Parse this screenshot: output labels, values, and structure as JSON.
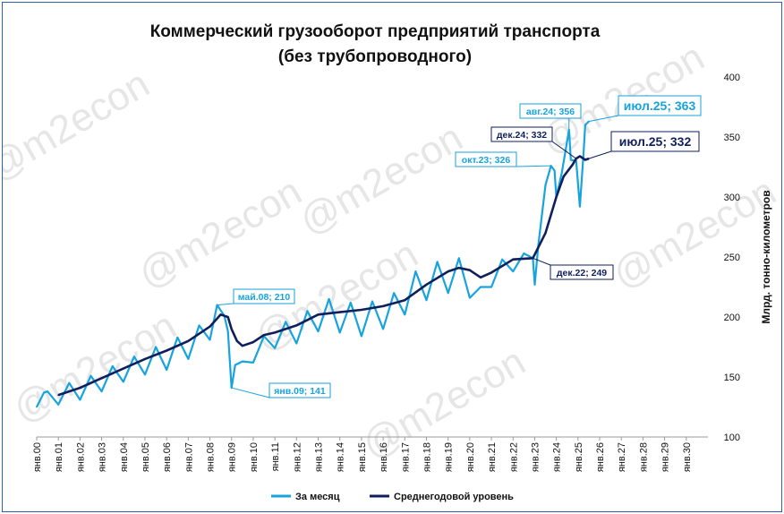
{
  "chart_data": {
    "type": "line",
    "title_lines": [
      "Коммерческий грузооборот предприятий транспорта",
      "(без трубопроводного)"
    ],
    "ylabel": "Млрд. тонно-километров",
    "ylim": [
      100,
      400
    ],
    "yticks": [
      100,
      150,
      200,
      250,
      300,
      350,
      400
    ],
    "x_start": "янв.00",
    "x_end": "янв.31",
    "xtick_labels": [
      "янв.00",
      "янв.01",
      "янв.02",
      "янв.03",
      "янв.04",
      "янв.05",
      "янв.06",
      "янв.07",
      "янв.08",
      "янв.09",
      "янв.10",
      "янв.11",
      "янв.12",
      "янв.13",
      "янв.14",
      "янв.15",
      "янв.16",
      "янв.17",
      "янв.18",
      "янв.19",
      "янв.20",
      "янв.21",
      "янв.22",
      "янв.23",
      "янв.24",
      "янв.25",
      "янв.26",
      "янв.27",
      "янв.28",
      "янв.29",
      "янв.30"
    ],
    "grid": false,
    "legend_position": "bottom",
    "watermark": "@m2econ",
    "series": [
      {
        "name": "За месяц",
        "color": "#17a3de",
        "points": [
          [
            "янв.00",
            125
          ],
          [
            "май.00",
            137
          ],
          [
            "июл.00",
            138
          ],
          [
            "янв.01",
            127
          ],
          [
            "июл.01",
            145
          ],
          [
            "янв.02",
            131
          ],
          [
            "июл.02",
            151
          ],
          [
            "янв.03",
            138
          ],
          [
            "июл.03",
            159
          ],
          [
            "янв.04",
            146
          ],
          [
            "июл.04",
            167
          ],
          [
            "янв.05",
            152
          ],
          [
            "июл.05",
            175
          ],
          [
            "янв.06",
            156
          ],
          [
            "июл.06",
            183
          ],
          [
            "янв.07",
            165
          ],
          [
            "июл.07",
            193
          ],
          [
            "янв.08",
            181
          ],
          [
            "май.08",
            210
          ],
          [
            "сен.08",
            201
          ],
          [
            "ноя.08",
            188
          ],
          [
            "янв.09",
            141
          ],
          [
            "мар.09",
            160
          ],
          [
            "июл.09",
            163
          ],
          [
            "янв.10",
            162
          ],
          [
            "июл.10",
            184
          ],
          [
            "янв.11",
            174
          ],
          [
            "июл.11",
            196
          ],
          [
            "янв.12",
            178
          ],
          [
            "июл.12",
            205
          ],
          [
            "янв.13",
            188
          ],
          [
            "июл.13",
            215
          ],
          [
            "янв.14",
            187
          ],
          [
            "июл.14",
            212
          ],
          [
            "янв.15",
            184
          ],
          [
            "июл.15",
            213
          ],
          [
            "янв.16",
            190
          ],
          [
            "июл.16",
            220
          ],
          [
            "янв.17",
            202
          ],
          [
            "июл.17",
            238
          ],
          [
            "янв.18",
            214
          ],
          [
            "июл.18",
            246
          ],
          [
            "янв.19",
            220
          ],
          [
            "июл.19",
            249
          ],
          [
            "янв.20",
            216
          ],
          [
            "июл.20",
            225
          ],
          [
            "янв.21",
            225
          ],
          [
            "июл.21",
            248
          ],
          [
            "янв.22",
            238
          ],
          [
            "июл.22",
            253
          ],
          [
            "дек.22",
            249
          ],
          [
            "янв.23",
            227
          ],
          [
            "мар.23",
            260
          ],
          [
            "июл.23",
            310
          ],
          [
            "окт.23",
            326
          ],
          [
            "дек.23",
            322
          ],
          [
            "янв.24",
            300
          ],
          [
            "апр.24",
            320
          ],
          [
            "авг.24",
            356
          ],
          [
            "сен.24",
            331
          ],
          [
            "дек.24",
            330
          ],
          [
            "фев.25",
            292
          ],
          [
            "апр.25",
            335
          ],
          [
            "май.25",
            360
          ],
          [
            "июл.25",
            363
          ]
        ]
      },
      {
        "name": "Среднегодовой уровень",
        "color": "#0f1f5c",
        "points": [
          [
            "янв.01",
            135
          ],
          [
            "янв.02",
            141
          ],
          [
            "янв.03",
            149
          ],
          [
            "янв.04",
            157
          ],
          [
            "янв.05",
            165
          ],
          [
            "янв.06",
            172
          ],
          [
            "янв.07",
            180
          ],
          [
            "янв.08",
            192
          ],
          [
            "июл.08",
            202
          ],
          [
            "ноя.08",
            200
          ],
          [
            "янв.09",
            190
          ],
          [
            "апр.09",
            180
          ],
          [
            "июл.09",
            176
          ],
          [
            "янв.10",
            179
          ],
          [
            "июл.10",
            185
          ],
          [
            "янв.11",
            187
          ],
          [
            "янв.12",
            193
          ],
          [
            "янв.13",
            202
          ],
          [
            "янв.14",
            204
          ],
          [
            "янв.15",
            206
          ],
          [
            "янв.16",
            209
          ],
          [
            "янв.17",
            214
          ],
          [
            "янв.18",
            227
          ],
          [
            "янв.19",
            238
          ],
          [
            "июл.19",
            241
          ],
          [
            "янв.20",
            239
          ],
          [
            "июл.20",
            233
          ],
          [
            "янв.21",
            237
          ],
          [
            "янв.22",
            248
          ],
          [
            "дек.22",
            249
          ],
          [
            "июл.23",
            270
          ],
          [
            "янв.24",
            300
          ],
          [
            "май.24",
            317
          ],
          [
            "окт.24",
            327
          ],
          [
            "дек.24",
            332
          ],
          [
            "фев.25",
            334
          ],
          [
            "май.25",
            331
          ],
          [
            "июл.25",
            332
          ]
        ]
      }
    ],
    "annotations": [
      {
        "text": "май.08; 210",
        "series": "За месяц",
        "x": "май.08",
        "y": 210
      },
      {
        "text": "янв.09; 141",
        "series": "За месяц",
        "x": "янв.09",
        "y": 141
      },
      {
        "text": "дек.22; 249",
        "series": "Среднегодовой уровень",
        "x": "дек.22",
        "y": 249
      },
      {
        "text": "окт.23; 326",
        "series": "За месяц",
        "x": "окт.23",
        "y": 326
      },
      {
        "text": "авг.24; 356",
        "series": "За месяц",
        "x": "авг.24",
        "y": 356
      },
      {
        "text": "дек.24; 332",
        "series": "Среднегодовой уровень",
        "x": "дек.24",
        "y": 332
      },
      {
        "text": "июл.25; 363",
        "series": "За месяц",
        "x": "июл.25",
        "y": 363
      },
      {
        "text": "июл.25; 332",
        "series": "Среднегодовой уровень",
        "x": "июл.25",
        "y": 332
      }
    ]
  }
}
